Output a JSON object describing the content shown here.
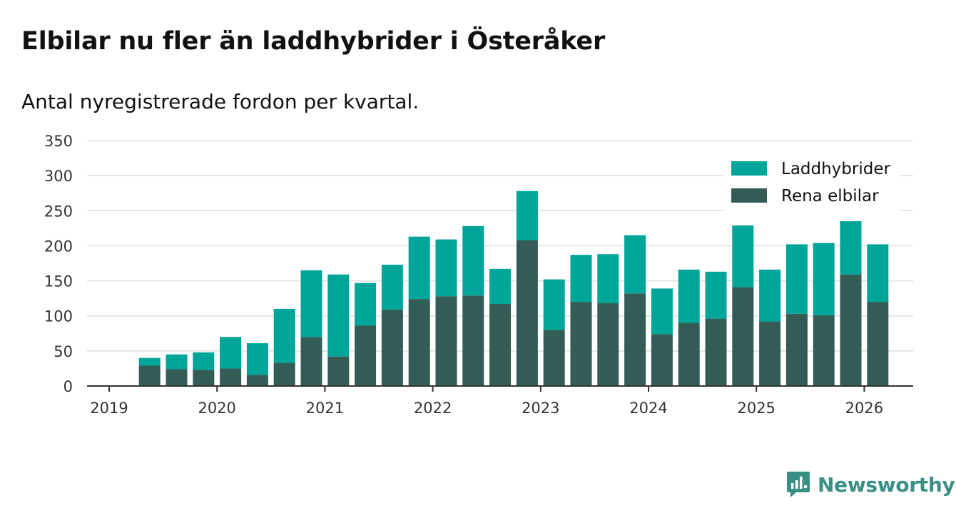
{
  "title": "Elbilar nu fler än laddhybrider i Österåker",
  "subtitle": "Antal nyregistrerade fordon per kvartal.",
  "brand": {
    "name": "Newsworthy",
    "icon": "newsworthy-logo-icon"
  },
  "colors": {
    "plugin_hybrid": "#00a599",
    "electric": "#335c57",
    "grid": "#dddddd",
    "axis": "#333333"
  },
  "chart_data": {
    "type": "bar",
    "stacked": true,
    "title": "Elbilar nu fler än laddhybrider i Österåker",
    "subtitle": "Antal nyregistrerade fordon per kvartal.",
    "xlabel": "",
    "ylabel": "",
    "ylim": [
      0,
      350
    ],
    "yticks": [
      0,
      50,
      100,
      150,
      200,
      250,
      300,
      350
    ],
    "xticks": [
      "2019",
      "2020",
      "2021",
      "2022",
      "2023",
      "2024",
      "2025",
      "2026"
    ],
    "legend_position": "top-right",
    "grid": true,
    "categories": [
      "2019 Q2",
      "2019 Q3",
      "2019 Q4",
      "2020 Q1",
      "2020 Q2",
      "2020 Q3",
      "2020 Q4",
      "2021 Q1",
      "2021 Q2",
      "2021 Q3",
      "2021 Q4",
      "2022 Q1",
      "2022 Q2",
      "2022 Q3",
      "2022 Q4",
      "2023 Q1",
      "2023 Q2",
      "2023 Q3",
      "2023 Q4",
      "2024 Q1",
      "2024 Q2",
      "2024 Q3",
      "2024 Q4",
      "2025 Q1",
      "2025 Q2",
      "2025 Q3",
      "2025 Q4",
      "2026 Q1"
    ],
    "series": [
      {
        "name": "Rena elbilar",
        "color": "#335c57",
        "values": [
          29,
          24,
          23,
          25,
          16,
          33,
          70,
          42,
          86,
          109,
          124,
          128,
          129,
          117,
          208,
          80,
          120,
          118,
          132,
          74,
          90,
          96,
          141,
          92,
          103,
          101,
          159,
          120
        ]
      },
      {
        "name": "Laddhybrider",
        "color": "#00a599",
        "values": [
          11,
          21,
          25,
          45,
          45,
          77,
          95,
          117,
          61,
          64,
          89,
          81,
          99,
          50,
          70,
          72,
          67,
          70,
          83,
          65,
          76,
          67,
          88,
          74,
          99,
          103,
          76,
          82
        ]
      }
    ]
  }
}
